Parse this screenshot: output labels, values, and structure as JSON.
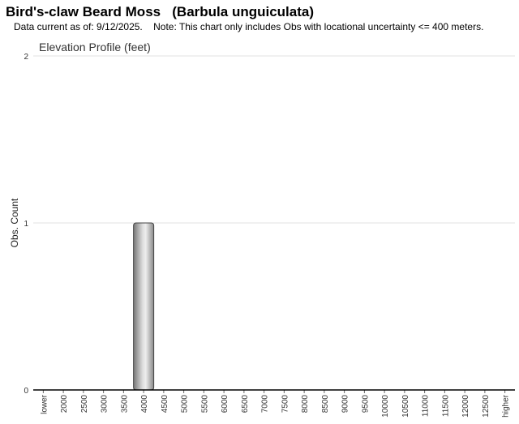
{
  "header": {
    "title": "Bird's-claw Beard Moss   (Barbula unguiculata)",
    "subtitle": "Data current as of: 9/12/2025.    Note: This chart only includes Obs with locational uncertainty <= 400 meters."
  },
  "chart_data": {
    "type": "bar",
    "title": "Elevation Profile (feet)",
    "xlabel": "",
    "ylabel": "Obs. Count",
    "ylim": [
      0,
      2
    ],
    "yticks": [
      0,
      1,
      2
    ],
    "grid": true,
    "categories": [
      "lower",
      "2000",
      "2500",
      "3000",
      "3500",
      "4000",
      "4500",
      "5000",
      "5500",
      "6000",
      "6500",
      "7000",
      "7500",
      "8000",
      "8500",
      "9000",
      "9500",
      "10000",
      "10500",
      "11000",
      "11500",
      "12000",
      "12500",
      "higher"
    ],
    "values": [
      0,
      0,
      0,
      0,
      0,
      1,
      0,
      0,
      0,
      0,
      0,
      0,
      0,
      0,
      0,
      0,
      0,
      0,
      0,
      0,
      0,
      0,
      0,
      0
    ],
    "bar_color": "#a0a0a0"
  }
}
